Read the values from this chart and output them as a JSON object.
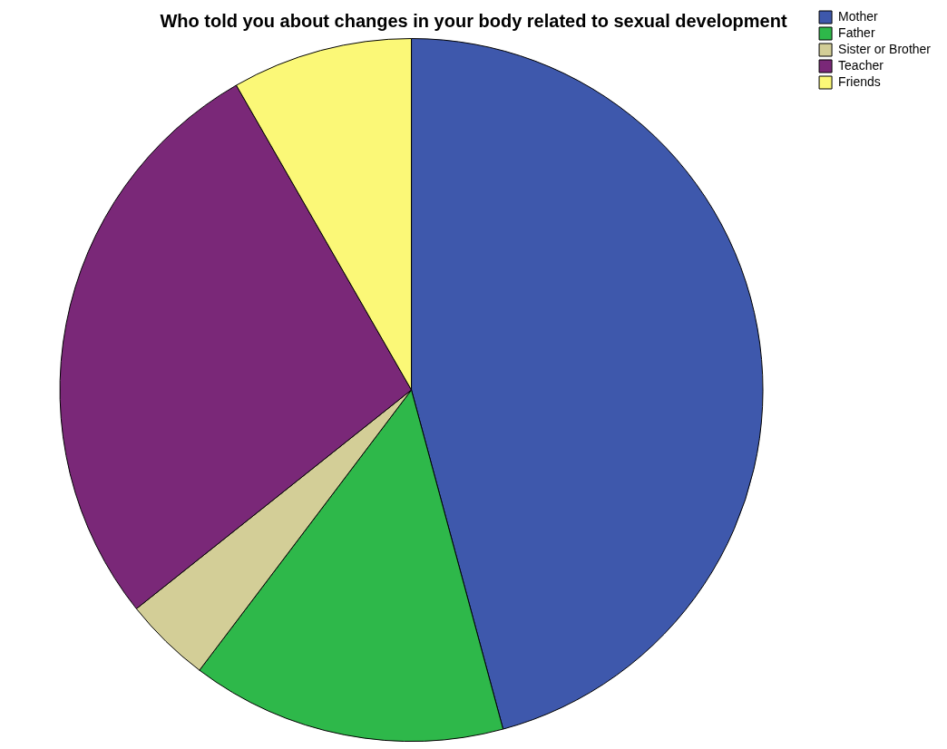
{
  "chart_data": {
    "type": "pie",
    "title": "Who told you about changes in your body related to sexual development",
    "categories": [
      "Mother",
      "Father",
      "Sister or Brother",
      "Teacher",
      "Friends"
    ],
    "values": [
      45.8,
      14.5,
      4.0,
      27.4,
      8.3
    ],
    "colors": [
      "#3e58ac",
      "#2eb84a",
      "#d3ce97",
      "#7a2878",
      "#fbf877"
    ],
    "legend": "top right"
  }
}
